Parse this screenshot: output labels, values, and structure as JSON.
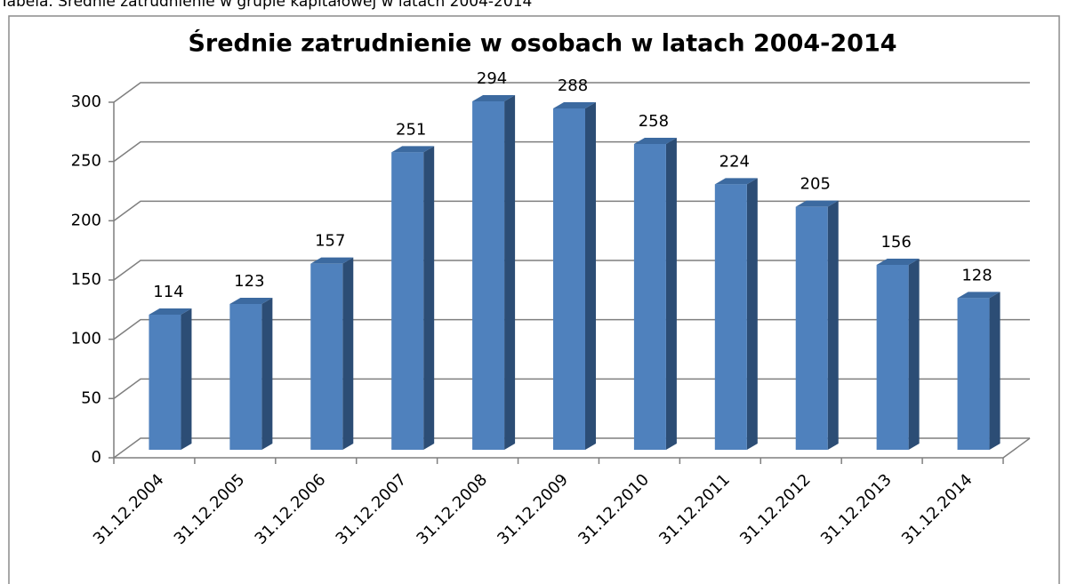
{
  "caption": "Tabela. Średnie zatrudnienie w grupie kapitałowej w latach 2004-2014",
  "chart_data": {
    "type": "bar3d",
    "title": "Średnie zatrudnienie w osobach w latach 2004-2014",
    "categories": [
      "31.12.2004",
      "31.12.2005",
      "31.12.2006",
      "31.12.2007",
      "31.12.2008",
      "31.12.2009",
      "31.12.2010",
      "31.12.2011",
      "31.12.2012",
      "31.12.2013",
      "31.12.2014"
    ],
    "values": [
      114,
      123,
      157,
      251,
      294,
      288,
      258,
      224,
      205,
      156,
      128
    ],
    "color": "#4f81bd",
    "ylim": [
      0,
      300
    ],
    "yticks": [
      0,
      50,
      100,
      150,
      200,
      250,
      300
    ],
    "grid": true
  }
}
